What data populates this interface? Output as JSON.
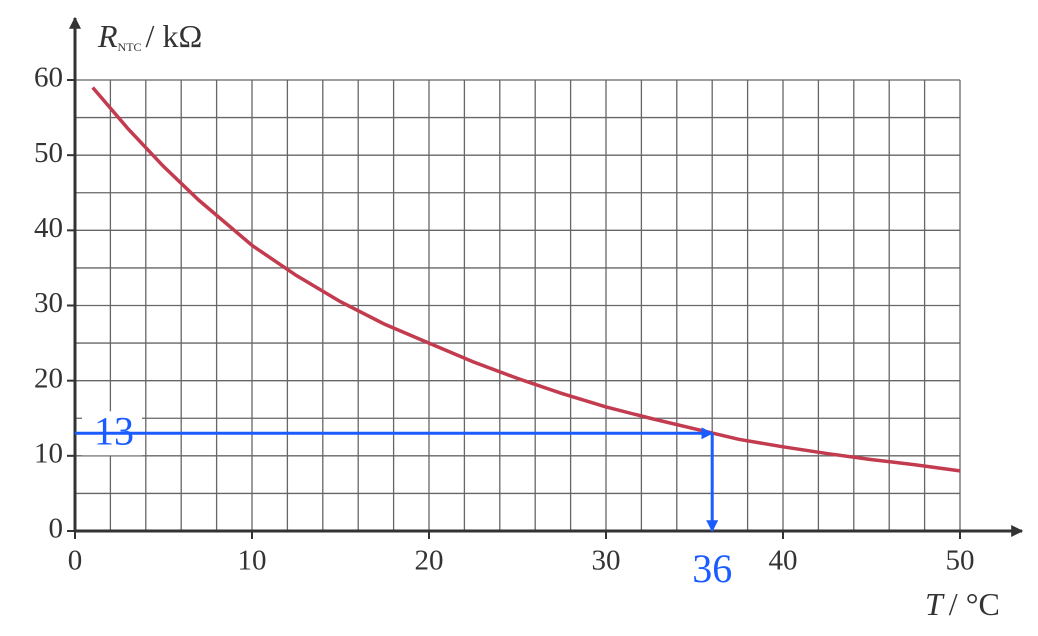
{
  "chart_data": {
    "type": "line",
    "y_label": {
      "symbol": "R",
      "subscript": "NTC",
      "unit": "/ kΩ"
    },
    "x_label": {
      "symbol": "T",
      "unit": "/ °C"
    },
    "x": [
      1,
      3,
      5,
      7,
      10,
      12.5,
      15,
      17.5,
      20,
      22.5,
      25,
      27.5,
      30,
      32.5,
      35,
      37.5,
      40,
      42.5,
      45,
      47.5,
      50
    ],
    "series": [
      {
        "color": "#c23b4e",
        "values": [
          59,
          53.5,
          48.5,
          44,
          38,
          34,
          30.5,
          27.5,
          25,
          22.5,
          20.3,
          18.3,
          16.5,
          15,
          13.6,
          12.2,
          11.2,
          10.3,
          9.5,
          8.8,
          8
        ]
      }
    ],
    "xlim": [
      0,
      50
    ],
    "ylim": [
      0,
      60
    ],
    "xticks": [
      0,
      10,
      20,
      30,
      40,
      50
    ],
    "yticks": [
      0,
      10,
      20,
      30,
      40,
      50,
      60
    ],
    "grid": true,
    "minor_grid": {
      "x": 2,
      "y": 5
    },
    "annotation": {
      "x": 36,
      "y": 13,
      "color": "#1a5cff"
    }
  }
}
